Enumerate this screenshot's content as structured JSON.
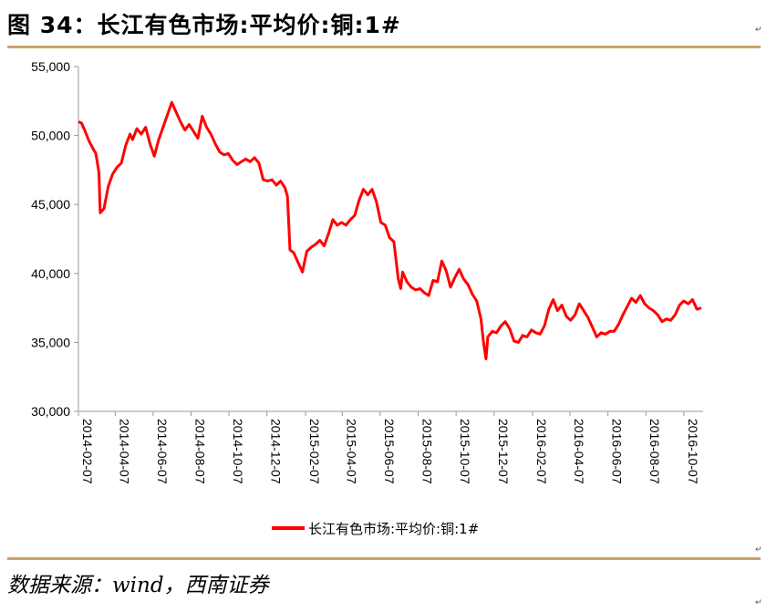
{
  "figure_title": "图 34：长江有色市场:平均价:铜:1#",
  "para_mark": "↵",
  "source": "数据来源：wind，西南证券",
  "colors": {
    "rule": "#c8a36a",
    "series": "#ff0000",
    "axis": "#999999"
  },
  "chart_data": {
    "type": "line",
    "title": "",
    "xlabel": "",
    "ylabel": "",
    "ylim": [
      30000,
      55000
    ],
    "yticks": [
      30000,
      35000,
      40000,
      45000,
      50000,
      55000
    ],
    "ytick_labels": [
      "30,000",
      "35,000",
      "40,000",
      "45,000",
      "50,000",
      "55,000"
    ],
    "xlim": [
      "2014-02-07",
      "2016-11-07"
    ],
    "xticks": [
      "2014-02-07",
      "2014-04-07",
      "2014-06-07",
      "2014-08-07",
      "2014-10-07",
      "2014-12-07",
      "2015-02-07",
      "2015-04-07",
      "2015-06-07",
      "2015-08-07",
      "2015-10-07",
      "2015-12-07",
      "2016-02-07",
      "2016-04-07",
      "2016-06-07",
      "2016-08-07",
      "2016-10-07"
    ],
    "grid": false,
    "legend": "bottom",
    "series": [
      {
        "name": "长江有色市场:平均价:铜:1#",
        "points": [
          [
            "2014-02-07",
            51000
          ],
          [
            "2014-02-12",
            50900
          ],
          [
            "2014-02-17",
            50400
          ],
          [
            "2014-02-24",
            49600
          ],
          [
            "2014-03-03",
            49000
          ],
          [
            "2014-03-07",
            48700
          ],
          [
            "2014-03-12",
            47300
          ],
          [
            "2014-03-14",
            44400
          ],
          [
            "2014-03-20",
            44700
          ],
          [
            "2014-03-27",
            46300
          ],
          [
            "2014-04-03",
            47200
          ],
          [
            "2014-04-10",
            47700
          ],
          [
            "2014-04-17",
            48000
          ],
          [
            "2014-04-24",
            49300
          ],
          [
            "2014-05-01",
            50100
          ],
          [
            "2014-05-05",
            49700
          ],
          [
            "2014-05-12",
            50500
          ],
          [
            "2014-05-19",
            50100
          ],
          [
            "2014-05-26",
            50600
          ],
          [
            "2014-06-02",
            49400
          ],
          [
            "2014-06-09",
            48500
          ],
          [
            "2014-06-16",
            49700
          ],
          [
            "2014-06-23",
            50600
          ],
          [
            "2014-06-30",
            51500
          ],
          [
            "2014-07-07",
            52400
          ],
          [
            "2014-07-14",
            51700
          ],
          [
            "2014-07-21",
            51000
          ],
          [
            "2014-07-28",
            50400
          ],
          [
            "2014-08-04",
            50800
          ],
          [
            "2014-08-11",
            50300
          ],
          [
            "2014-08-18",
            49800
          ],
          [
            "2014-08-25",
            51400
          ],
          [
            "2014-09-01",
            50600
          ],
          [
            "2014-09-08",
            50100
          ],
          [
            "2014-09-15",
            49400
          ],
          [
            "2014-09-22",
            48800
          ],
          [
            "2014-09-29",
            48600
          ],
          [
            "2014-10-06",
            48700
          ],
          [
            "2014-10-13",
            48200
          ],
          [
            "2014-10-20",
            47900
          ],
          [
            "2014-10-27",
            48100
          ],
          [
            "2014-11-03",
            48300
          ],
          [
            "2014-11-10",
            48100
          ],
          [
            "2014-11-17",
            48400
          ],
          [
            "2014-11-24",
            48000
          ],
          [
            "2014-12-01",
            46800
          ],
          [
            "2014-12-08",
            46700
          ],
          [
            "2014-12-15",
            46800
          ],
          [
            "2014-12-22",
            46400
          ],
          [
            "2014-12-29",
            46700
          ],
          [
            "2015-01-05",
            46200
          ],
          [
            "2015-01-09",
            45600
          ],
          [
            "2015-01-13",
            41700
          ],
          [
            "2015-01-19",
            41500
          ],
          [
            "2015-01-26",
            40800
          ],
          [
            "2015-02-02",
            40100
          ],
          [
            "2015-02-09",
            41600
          ],
          [
            "2015-02-16",
            41900
          ],
          [
            "2015-02-23",
            42100
          ],
          [
            "2015-03-02",
            42400
          ],
          [
            "2015-03-09",
            42000
          ],
          [
            "2015-03-16",
            42900
          ],
          [
            "2015-03-23",
            43900
          ],
          [
            "2015-03-30",
            43500
          ],
          [
            "2015-04-06",
            43700
          ],
          [
            "2015-04-13",
            43500
          ],
          [
            "2015-04-20",
            43900
          ],
          [
            "2015-04-27",
            44200
          ],
          [
            "2015-05-04",
            45300
          ],
          [
            "2015-05-11",
            46100
          ],
          [
            "2015-05-18",
            45700
          ],
          [
            "2015-05-25",
            46100
          ],
          [
            "2015-06-01",
            45200
          ],
          [
            "2015-06-08",
            43700
          ],
          [
            "2015-06-15",
            43500
          ],
          [
            "2015-06-22",
            42600
          ],
          [
            "2015-06-29",
            42300
          ],
          [
            "2015-07-06",
            39600
          ],
          [
            "2015-07-10",
            38900
          ],
          [
            "2015-07-13",
            40100
          ],
          [
            "2015-07-20",
            39400
          ],
          [
            "2015-07-27",
            39000
          ],
          [
            "2015-08-03",
            38800
          ],
          [
            "2015-08-10",
            38900
          ],
          [
            "2015-08-17",
            38600
          ],
          [
            "2015-08-24",
            38400
          ],
          [
            "2015-08-31",
            39500
          ],
          [
            "2015-09-07",
            39400
          ],
          [
            "2015-09-14",
            40900
          ],
          [
            "2015-09-21",
            40200
          ],
          [
            "2015-09-28",
            39000
          ],
          [
            "2015-10-05",
            39700
          ],
          [
            "2015-10-12",
            40300
          ],
          [
            "2015-10-19",
            39600
          ],
          [
            "2015-10-26",
            39200
          ],
          [
            "2015-11-02",
            38500
          ],
          [
            "2015-11-09",
            38000
          ],
          [
            "2015-11-16",
            36700
          ],
          [
            "2015-11-20",
            35000
          ],
          [
            "2015-11-24",
            33800
          ],
          [
            "2015-11-27",
            35400
          ],
          [
            "2015-12-04",
            35800
          ],
          [
            "2015-12-11",
            35700
          ],
          [
            "2015-12-18",
            36200
          ],
          [
            "2015-12-25",
            36500
          ],
          [
            "2016-01-01",
            36000
          ],
          [
            "2016-01-08",
            35100
          ],
          [
            "2016-01-15",
            35000
          ],
          [
            "2016-01-22",
            35500
          ],
          [
            "2016-01-29",
            35400
          ],
          [
            "2016-02-05",
            35900
          ],
          [
            "2016-02-12",
            35700
          ],
          [
            "2016-02-19",
            35600
          ],
          [
            "2016-02-26",
            36200
          ],
          [
            "2016-03-04",
            37400
          ],
          [
            "2016-03-11",
            38100
          ],
          [
            "2016-03-18",
            37300
          ],
          [
            "2016-03-25",
            37700
          ],
          [
            "2016-04-01",
            36900
          ],
          [
            "2016-04-08",
            36600
          ],
          [
            "2016-04-15",
            37000
          ],
          [
            "2016-04-22",
            37800
          ],
          [
            "2016-04-29",
            37300
          ],
          [
            "2016-05-06",
            36800
          ],
          [
            "2016-05-13",
            36100
          ],
          [
            "2016-05-20",
            35400
          ],
          [
            "2016-05-27",
            35700
          ],
          [
            "2016-06-03",
            35600
          ],
          [
            "2016-06-10",
            35800
          ],
          [
            "2016-06-17",
            35800
          ],
          [
            "2016-06-24",
            36300
          ],
          [
            "2016-07-01",
            37000
          ],
          [
            "2016-07-08",
            37600
          ],
          [
            "2016-07-15",
            38200
          ],
          [
            "2016-07-22",
            37900
          ],
          [
            "2016-07-29",
            38400
          ],
          [
            "2016-08-05",
            37800
          ],
          [
            "2016-08-12",
            37500
          ],
          [
            "2016-08-19",
            37300
          ],
          [
            "2016-08-26",
            37000
          ],
          [
            "2016-09-02",
            36500
          ],
          [
            "2016-09-09",
            36700
          ],
          [
            "2016-09-16",
            36600
          ],
          [
            "2016-09-23",
            37000
          ],
          [
            "2016-09-30",
            37700
          ],
          [
            "2016-10-07",
            38000
          ],
          [
            "2016-10-14",
            37800
          ],
          [
            "2016-10-21",
            38100
          ],
          [
            "2016-10-28",
            37400
          ],
          [
            "2016-11-04",
            37500
          ]
        ]
      }
    ]
  }
}
